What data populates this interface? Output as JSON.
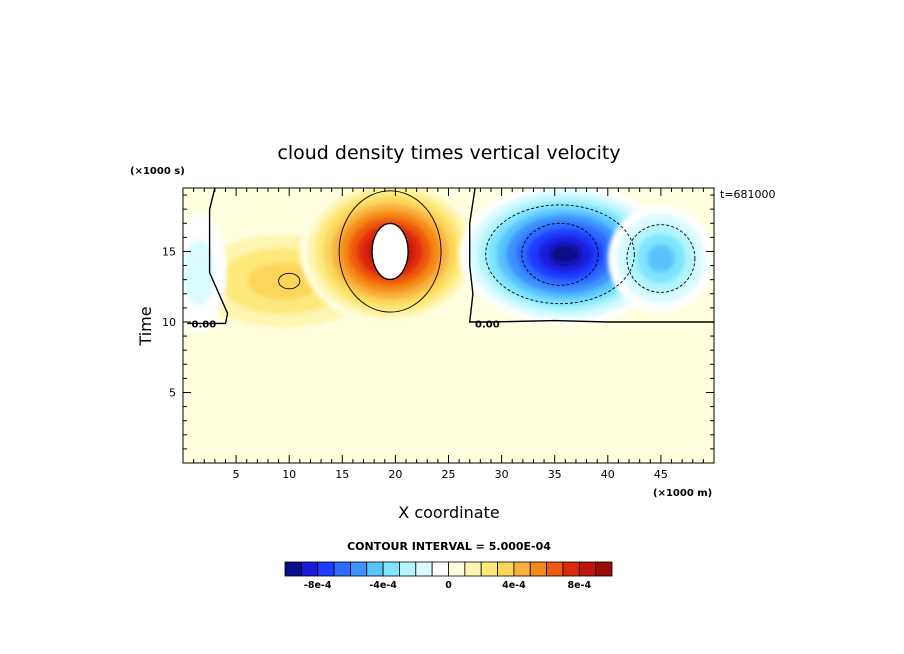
{
  "chart_data": {
    "type": "heatmap",
    "title": "cloud density times vertical velocity",
    "xlabel": "X coordinate",
    "ylabel": "Time",
    "x_unit": "(×1000 m)",
    "y_unit": "(×1000 s)",
    "annotation_top_right": "t=681000",
    "contour_interval_label": "CONTOUR INTERVAL = 5.000E-04",
    "zero_contour_label": "0.00",
    "xlim": [
      0,
      50
    ],
    "ylim": [
      0,
      19.5
    ],
    "x_ticks": [
      5,
      10,
      15,
      20,
      25,
      30,
      35,
      40,
      45
    ],
    "y_ticks": [
      5,
      10,
      15
    ],
    "colorbar": {
      "min": -0.001,
      "max": 0.001,
      "interval": 0.0001,
      "colors": [
        "#0d0d8a",
        "#1a1adb",
        "#1f3cff",
        "#2f6bff",
        "#3e92ff",
        "#59c2ff",
        "#7ee4ff",
        "#b3f5fb",
        "#d9fbff",
        "#ffffff",
        "#ffffe0",
        "#fdf5b0",
        "#fde97a",
        "#fbd65a",
        "#f8b040",
        "#f48a18",
        "#ee5a10",
        "#dc2a0a",
        "#c0130c",
        "#9c0a0a"
      ],
      "tick_values": [
        -0.0008,
        -0.0004,
        0,
        0.0004,
        0.0008
      ],
      "tick_labels": [
        "-8e-4",
        "-4e-4",
        "0",
        "4e-4",
        "8e-4"
      ]
    },
    "features": [
      {
        "x": 10,
        "y": 12.9,
        "peak": 0.0004,
        "kind": "positive maximum"
      },
      {
        "x": 19.5,
        "y": 15,
        "peak": 0.001,
        "kind": "positive maximum (saturated)"
      },
      {
        "x": 35.5,
        "y": 14.8,
        "peak": -0.001,
        "kind": "negative minimum"
      },
      {
        "x": 45,
        "y": 14.5,
        "peak": -0.0005,
        "kind": "negative minimum"
      },
      {
        "x": 1.5,
        "y": 13.5,
        "peak": -0.0002,
        "kind": "negative minimum"
      }
    ],
    "background_below_t": {
      "t": 10,
      "value": 5e-05
    }
  }
}
